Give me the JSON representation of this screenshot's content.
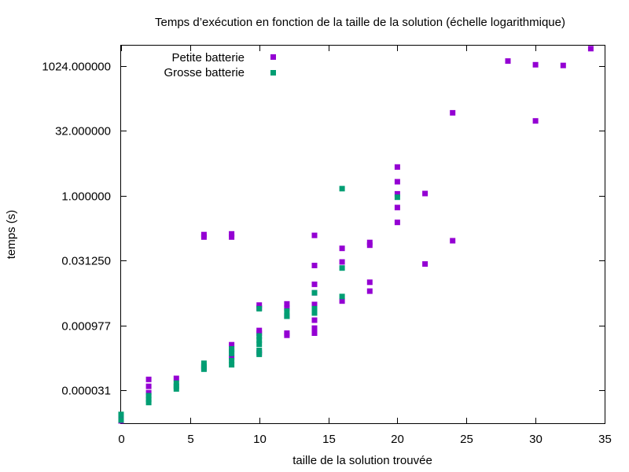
{
  "chart_data": {
    "type": "scatter",
    "title": "Temps d’exécution en fonction de la taille de la solution (échelle logarithmique)",
    "xlabel": "taille de la solution trouvée",
    "ylabel": "temps (s)",
    "xlim": [
      0,
      35
    ],
    "ylim": [
      5.3e-06,
      3000
    ],
    "y_scale": "log2",
    "grid": false,
    "legend_position": "top-left",
    "x_ticks": [
      0,
      5,
      10,
      15,
      20,
      25,
      30,
      35
    ],
    "x_tick_labels": [
      "0",
      "5",
      "10",
      "15",
      "20",
      "25",
      "30",
      "35"
    ],
    "y_ticks": [
      3.1e-05,
      0.000977,
      0.03125,
      1.0,
      32.0,
      1024.0
    ],
    "y_tick_labels": [
      "0.000031",
      "0.000977",
      "0.031250",
      "1.000000",
      "32.000000",
      "1024.000000"
    ],
    "series": [
      {
        "name": "Petite batterie",
        "color": "#9400d3",
        "marker": "square",
        "points": [
          {
            "x": 0,
            "y": 6e-06
          },
          {
            "x": 0,
            "y": 6.8e-06
          },
          {
            "x": 2,
            "y": 5.5e-05
          },
          {
            "x": 2,
            "y": 3.8e-05
          },
          {
            "x": 2,
            "y": 2.7e-05
          },
          {
            "x": 4,
            "y": 5.8e-05
          },
          {
            "x": 6,
            "y": 0.0001
          },
          {
            "x": 6,
            "y": 0.11
          },
          {
            "x": 6,
            "y": 0.125
          },
          {
            "x": 8,
            "y": 0.00035
          },
          {
            "x": 8,
            "y": 0.00025
          },
          {
            "x": 8,
            "y": 0.00018
          },
          {
            "x": 8,
            "y": 0.11
          },
          {
            "x": 8,
            "y": 0.13
          },
          {
            "x": 10,
            "y": 0.0029
          },
          {
            "x": 10,
            "y": 0.0025
          },
          {
            "x": 10,
            "y": 0.00075
          },
          {
            "x": 10,
            "y": 0.00065
          },
          {
            "x": 10,
            "y": 0.00023
          },
          {
            "x": 12,
            "y": 0.0031
          },
          {
            "x": 12,
            "y": 0.0025
          },
          {
            "x": 12,
            "y": 0.0016
          },
          {
            "x": 12,
            "y": 0.00065
          },
          {
            "x": 12,
            "y": 0.00058
          },
          {
            "x": 14,
            "y": 0.12
          },
          {
            "x": 14,
            "y": 0.024
          },
          {
            "x": 14,
            "y": 0.0088
          },
          {
            "x": 14,
            "y": 0.0056
          },
          {
            "x": 14,
            "y": 0.003
          },
          {
            "x": 14,
            "y": 0.0013
          },
          {
            "x": 14,
            "y": 0.00085
          },
          {
            "x": 14,
            "y": 0.00065
          },
          {
            "x": 16,
            "y": 0.06
          },
          {
            "x": 16,
            "y": 0.029
          },
          {
            "x": 16,
            "y": 0.0036
          },
          {
            "x": 18,
            "y": 0.082
          },
          {
            "x": 18,
            "y": 0.071
          },
          {
            "x": 18,
            "y": 0.0098
          },
          {
            "x": 18,
            "y": 0.0061
          },
          {
            "x": 20,
            "y": 4.6
          },
          {
            "x": 20,
            "y": 2.1
          },
          {
            "x": 20,
            "y": 1.1
          },
          {
            "x": 20,
            "y": 0.53
          },
          {
            "x": 20,
            "y": 0.24
          },
          {
            "x": 22,
            "y": 1.12
          },
          {
            "x": 22,
            "y": 0.026
          },
          {
            "x": 24,
            "y": 0.09
          },
          {
            "x": 24,
            "y": 83.0
          },
          {
            "x": 28,
            "y": 1320.0
          },
          {
            "x": 30,
            "y": 1080.0
          },
          {
            "x": 30,
            "y": 54.0
          },
          {
            "x": 32,
            "y": 1040.0
          },
          {
            "x": 34,
            "y": 2560.0
          }
        ]
      },
      {
        "name": "Grosse batterie",
        "color": "#009e73",
        "marker": "square",
        "points": [
          {
            "x": 0,
            "y": 8.5e-06
          },
          {
            "x": 0,
            "y": 6.3e-06
          },
          {
            "x": 2,
            "y": 2.3e-05
          },
          {
            "x": 2,
            "y": 1.9e-05
          },
          {
            "x": 2,
            "y": 1.6e-05
          },
          {
            "x": 4,
            "y": 4.5e-05
          },
          {
            "x": 4,
            "y": 3.8e-05
          },
          {
            "x": 4,
            "y": 3.3e-05
          },
          {
            "x": 6,
            "y": 0.00013
          },
          {
            "x": 6,
            "y": 0.00011
          },
          {
            "x": 6,
            "y": 9.5e-05
          },
          {
            "x": 8,
            "y": 0.00028
          },
          {
            "x": 8,
            "y": 0.00022
          },
          {
            "x": 8,
            "y": 0.00015
          },
          {
            "x": 8,
            "y": 0.00012
          },
          {
            "x": 10,
            "y": 0.0024
          },
          {
            "x": 10,
            "y": 0.00056
          },
          {
            "x": 10,
            "y": 0.00045
          },
          {
            "x": 10,
            "y": 0.00036
          },
          {
            "x": 10,
            "y": 0.00026
          },
          {
            "x": 10,
            "y": 0.00021
          },
          {
            "x": 12,
            "y": 0.0021
          },
          {
            "x": 12,
            "y": 0.0016
          },
          {
            "x": 14,
            "y": 0.0056
          },
          {
            "x": 14,
            "y": 0.0024
          },
          {
            "x": 14,
            "y": 0.0019
          },
          {
            "x": 16,
            "y": 1.45
          },
          {
            "x": 16,
            "y": 0.021
          },
          {
            "x": 16,
            "y": 0.0046
          },
          {
            "x": 20,
            "y": 0.92
          }
        ]
      }
    ]
  }
}
